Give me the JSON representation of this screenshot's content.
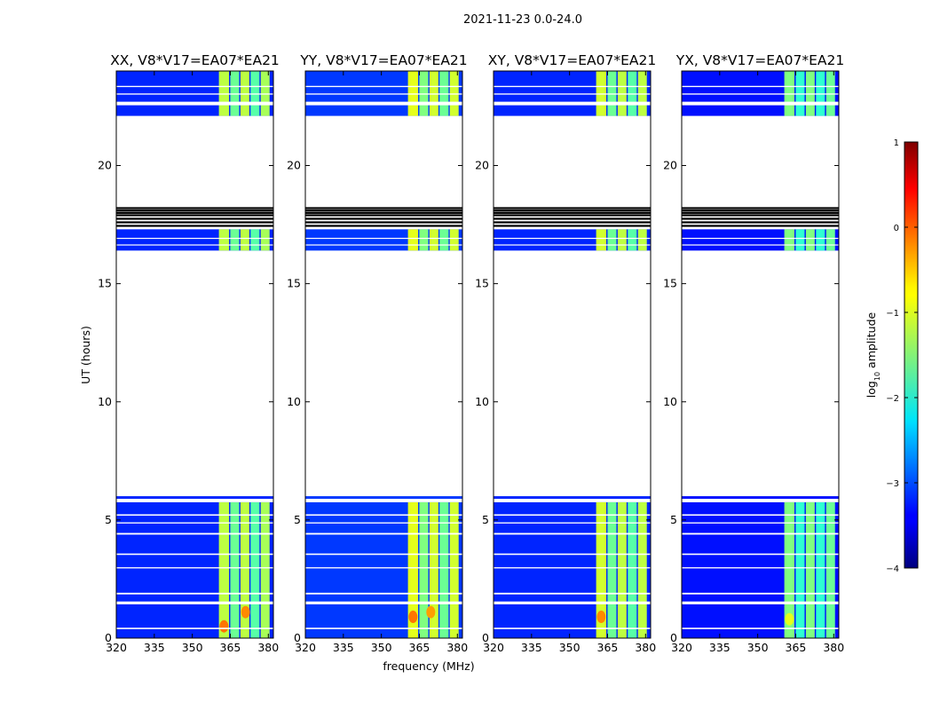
{
  "chart_data": {
    "type": "heatmap",
    "suptitle": "2021-11-23 0.0-24.0",
    "xlabel": "frequency (MHz)",
    "ylabel": "UT (hours)",
    "xlim": [
      320,
      382
    ],
    "ylim": [
      0,
      24
    ],
    "xticks": [
      "320",
      "335",
      "350",
      "365",
      "380"
    ],
    "yticks": [
      "0",
      "5",
      "10",
      "15",
      "20"
    ],
    "colorbar": {
      "label_main": "log",
      "label_sub": "10",
      "label_rest": " amplitude",
      "range": [
        -4,
        1
      ],
      "ticks": [
        "1",
        "0",
        "−1",
        "−2",
        "−3",
        "−4"
      ],
      "colormap": "jet"
    },
    "data_bands_hours": [
      [
        0,
        5.75
      ],
      [
        16.4,
        17.3
      ],
      [
        22.1,
        24.0
      ]
    ],
    "single_lines_hours": [
      5.95
    ],
    "flagged_lines_hours": [
      17.45,
      17.6,
      17.75,
      17.9,
      18.0,
      18.1,
      18.2
    ],
    "gaps_hours": [
      [
        0.38,
        0.44
      ],
      [
        1.43,
        1.55
      ],
      [
        1.85,
        1.92
      ],
      [
        2.95,
        3.0
      ],
      [
        3.52,
        3.58
      ],
      [
        4.38,
        4.45
      ],
      [
        4.85,
        4.9
      ],
      [
        5.18,
        5.24
      ],
      [
        16.62,
        16.66
      ],
      [
        16.9,
        16.94
      ],
      [
        22.55,
        22.7
      ],
      [
        23.0,
        23.05
      ],
      [
        23.32,
        23.37
      ]
    ],
    "panels": [
      {
        "title": "XX, V8*V17=EA07*EA21",
        "background_log_amp": -3.2,
        "bright_bands": [
          {
            "freq": [
              360.5,
              364.5
            ],
            "log_amp": -1.2
          },
          {
            "freq": [
              365,
              368.5
            ],
            "log_amp": -1.6
          },
          {
            "freq": [
              369,
              372.5
            ],
            "log_amp": -1.2
          },
          {
            "freq": [
              373,
              376.5
            ],
            "log_amp": -1.7
          },
          {
            "freq": [
              377,
              380.5
            ],
            "log_amp": -1.3
          }
        ],
        "hot_spots": [
          {
            "freq": 362.5,
            "hour": 0.5,
            "log_amp": -0.2
          },
          {
            "freq": 371,
            "hour": 1.1,
            "log_amp": -0.3
          }
        ]
      },
      {
        "title": "YY, V8*V17=EA07*EA21",
        "background_log_amp": -3.1,
        "bright_bands": [
          {
            "freq": [
              360.5,
              364.5
            ],
            "log_amp": -1.0
          },
          {
            "freq": [
              365,
              368.5
            ],
            "log_amp": -1.5
          },
          {
            "freq": [
              369,
              372.5
            ],
            "log_amp": -1.1
          },
          {
            "freq": [
              373,
              376.5
            ],
            "log_amp": -1.6
          },
          {
            "freq": [
              377,
              380.5
            ],
            "log_amp": -1.1
          }
        ],
        "hot_spots": [
          {
            "freq": 362.5,
            "hour": 0.9,
            "log_amp": -0.2
          },
          {
            "freq": 369.5,
            "hour": 1.1,
            "log_amp": -0.4
          }
        ]
      },
      {
        "title": "XY, V8*V17=EA07*EA21",
        "background_log_amp": -3.2,
        "bright_bands": [
          {
            "freq": [
              360.5,
              364.5
            ],
            "log_amp": -1.1
          },
          {
            "freq": [
              365,
              368.5
            ],
            "log_amp": -1.6
          },
          {
            "freq": [
              369,
              372.5
            ],
            "log_amp": -1.2
          },
          {
            "freq": [
              373,
              376.5
            ],
            "log_amp": -1.7
          },
          {
            "freq": [
              377,
              380.5
            ],
            "log_amp": -1.2
          }
        ],
        "hot_spots": [
          {
            "freq": 362.5,
            "hour": 0.9,
            "log_amp": -0.3
          }
        ]
      },
      {
        "title": "YX, V8*V17=EA07*EA21",
        "background_log_amp": -3.3,
        "bright_bands": [
          {
            "freq": [
              360.5,
              364.5
            ],
            "log_amp": -1.5
          },
          {
            "freq": [
              365,
              368.5
            ],
            "log_amp": -1.9
          },
          {
            "freq": [
              369,
              372.5
            ],
            "log_amp": -1.5
          },
          {
            "freq": [
              373,
              376.5
            ],
            "log_amp": -1.9
          },
          {
            "freq": [
              377,
              380.5
            ],
            "log_amp": -1.6
          }
        ],
        "hot_spots": [
          {
            "freq": 362.5,
            "hour": 0.8,
            "log_amp": -1.0
          }
        ]
      }
    ]
  }
}
